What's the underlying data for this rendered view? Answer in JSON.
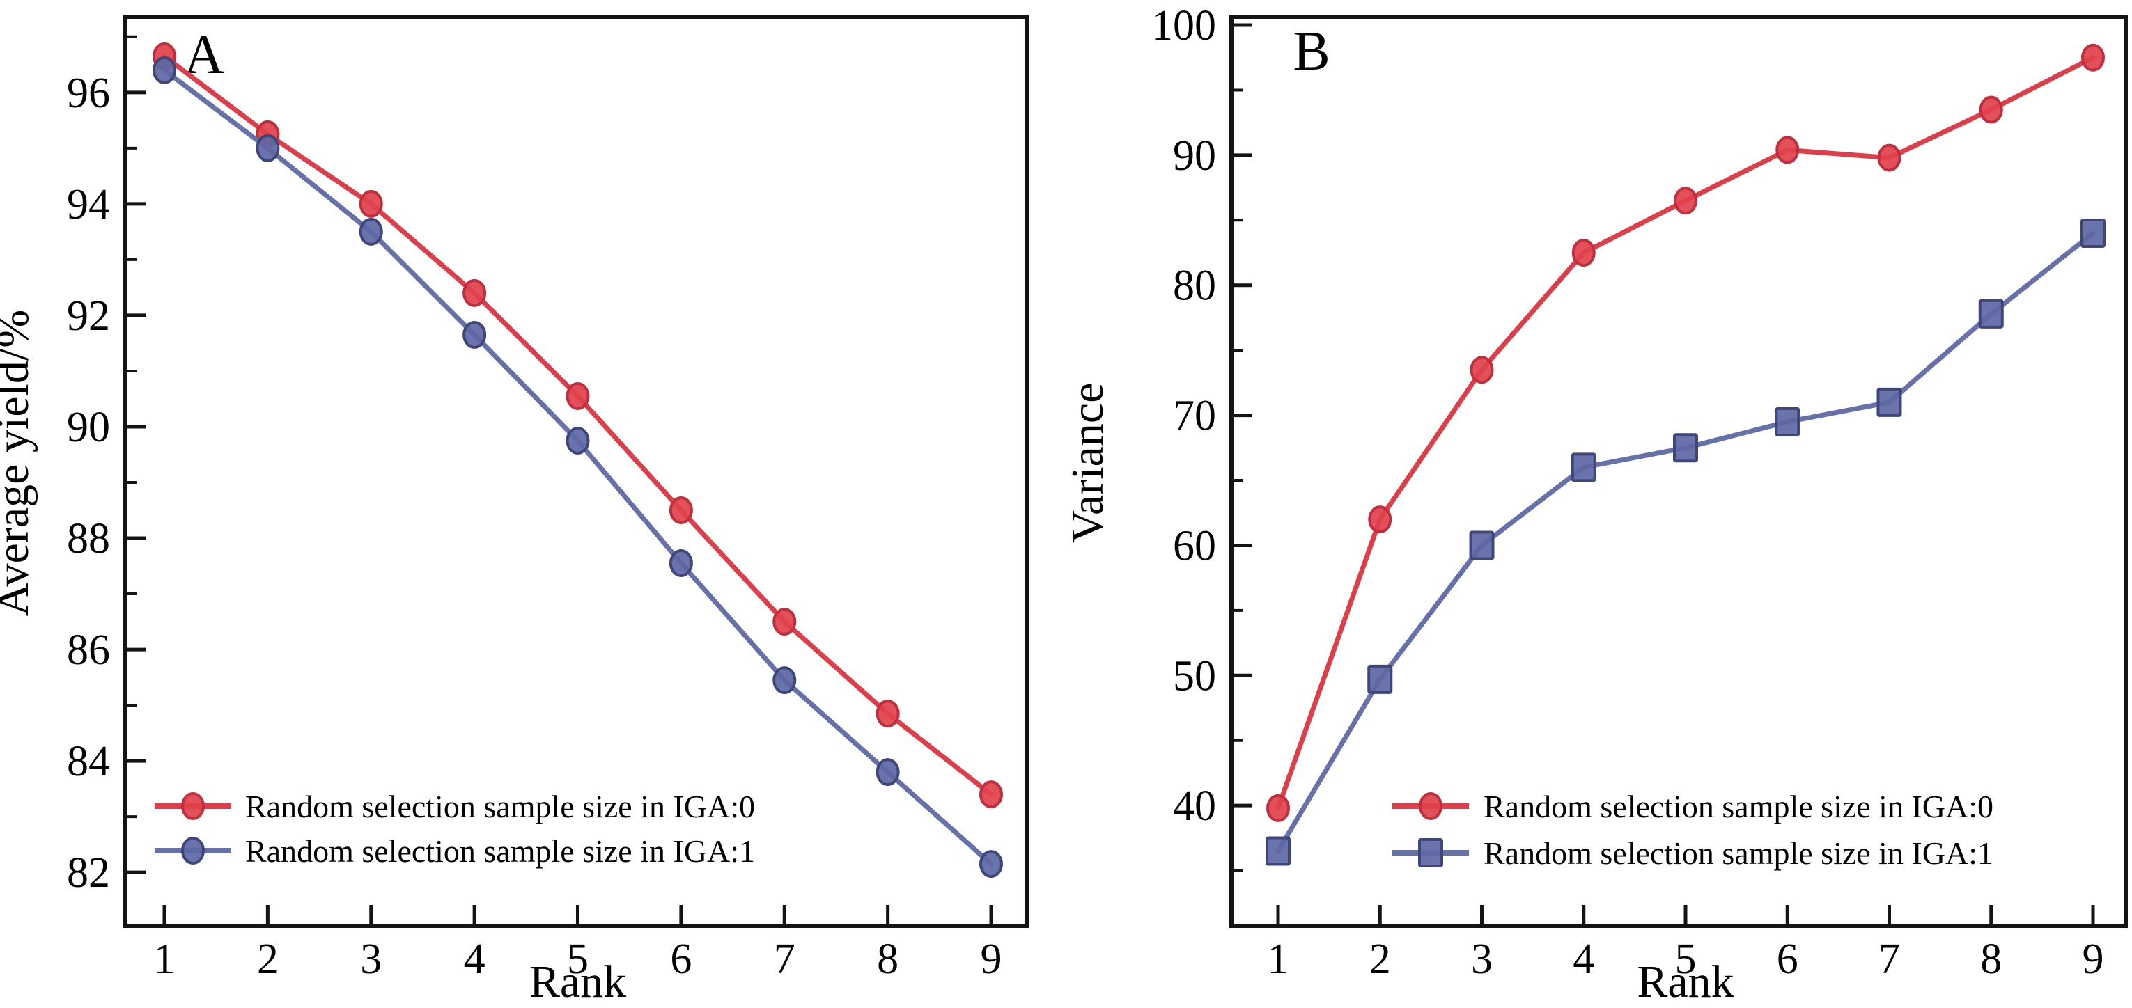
{
  "figure": {
    "background": "#ffffff",
    "ink_color": "#161413"
  },
  "chart_data": [
    {
      "type": "line",
      "panel_label": "A",
      "title": "",
      "xlabel": "Rank",
      "ylabel": "Average yield/%",
      "x": [
        1,
        2,
        3,
        4,
        5,
        6,
        7,
        8,
        9
      ],
      "xticks": [
        "1",
        "2",
        "3",
        "4",
        "5",
        "6",
        "7",
        "8",
        "9"
      ],
      "ylim": [
        81.04,
        97.36
      ],
      "yticks_major": [
        82,
        84,
        86,
        88,
        90,
        92,
        94,
        96
      ],
      "yticks_minor": [
        83,
        85,
        87,
        89,
        91,
        93,
        95,
        97
      ],
      "grid": false,
      "legend_position": "lower-left",
      "series": [
        {
          "name": "Random selection sample size in IGA:0",
          "marker": "circle",
          "line_color": "#DC3E4A",
          "marker_fill": "#E0414C",
          "marker_stroke": "#C02F3D",
          "values": [
            96.65,
            95.25,
            94.0,
            92.4,
            90.55,
            88.5,
            86.5,
            84.85,
            83.4
          ]
        },
        {
          "name": "Random selection sample size in IGA:1",
          "marker": "circle",
          "line_color": "#6670A9",
          "marker_fill": "#5E67A5",
          "marker_stroke": "#3F4779",
          "values": [
            96.4,
            95.0,
            93.5,
            91.65,
            89.75,
            87.55,
            85.45,
            83.8,
            82.15
          ]
        }
      ]
    },
    {
      "type": "line",
      "panel_label": "B",
      "title": "",
      "xlabel": "Rank",
      "ylabel": "Variance",
      "x": [
        1,
        2,
        3,
        4,
        5,
        6,
        7,
        8,
        9
      ],
      "xticks": [
        "1",
        "2",
        "3",
        "4",
        "5",
        "6",
        "7",
        "8",
        "9"
      ],
      "ylim": [
        30.75,
        100.59
      ],
      "yticks_major": [
        40,
        50,
        60,
        70,
        80,
        90,
        100
      ],
      "yticks_minor": [
        35,
        45,
        55,
        65,
        75,
        85,
        95
      ],
      "grid": false,
      "legend_position": "lower-right",
      "series": [
        {
          "name": "Random selection sample size in IGA:0",
          "marker": "circle",
          "line_color": "#DC3E4A",
          "marker_fill": "#E0414C",
          "marker_stroke": "#C02F3D",
          "values": [
            39.8,
            62.0,
            73.5,
            82.5,
            86.5,
            90.4,
            89.8,
            93.5,
            97.5
          ]
        },
        {
          "name": "Random selection sample size in IGA:1",
          "marker": "square",
          "line_color": "#6670A9",
          "marker_fill": "#5E67A5",
          "marker_stroke": "#3F4779",
          "values": [
            36.5,
            49.7,
            60.0,
            66.0,
            67.5,
            69.5,
            71.0,
            77.8,
            84.0
          ]
        }
      ]
    }
  ]
}
